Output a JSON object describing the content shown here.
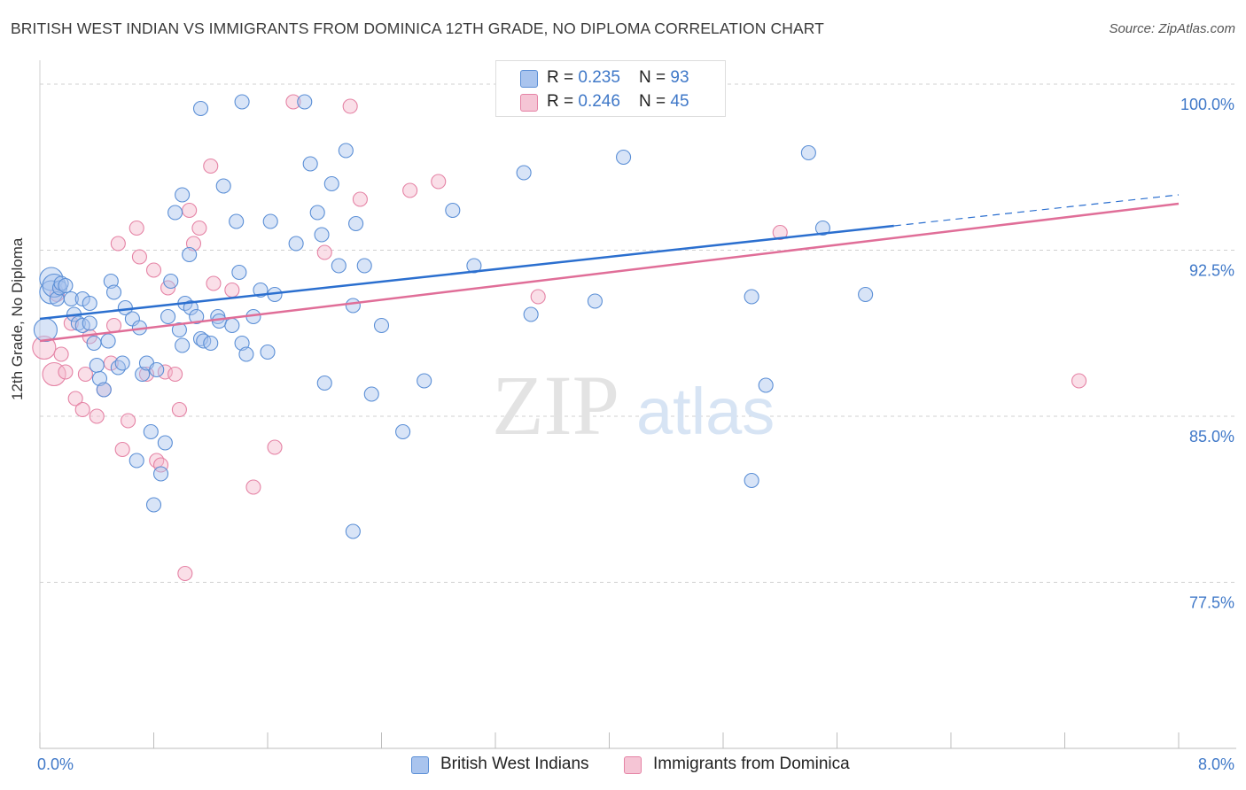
{
  "header": {
    "title": "BRITISH WEST INDIAN VS IMMIGRANTS FROM DOMINICA 12TH GRADE, NO DIPLOMA CORRELATION CHART",
    "source": "Source: ZipAtlas.com"
  },
  "watermark": {
    "zip": "ZIP",
    "atlas": "atlas"
  },
  "legend": {
    "series1": {
      "r_label": "R = ",
      "r_value": "0.235",
      "n_label": "N = ",
      "n_value": "93"
    },
    "series2": {
      "r_label": "R = ",
      "r_value": "0.246",
      "n_label": "N = ",
      "n_value": "45"
    }
  },
  "chart_data": {
    "type": "scatter",
    "xlabel": "",
    "ylabel": "12th Grade, No Diploma",
    "xlim": [
      0.0,
      8.0
    ],
    "ylim": [
      70.0,
      100.8
    ],
    "x_tick_labels": [
      "0.0%",
      "8.0%"
    ],
    "y_ticks": [
      77.5,
      85.0,
      92.5,
      100.0
    ],
    "y_tick_labels": [
      "77.5%",
      "85.0%",
      "92.5%",
      "100.0%"
    ],
    "grid": "horizontal-dashed",
    "legend_placement": "top-center",
    "colors": {
      "series1_fill": "#a9c4ee",
      "series1_stroke": "#5b8fd6",
      "series1_line": "#2b6fcf",
      "series2_fill": "#f5b8cc",
      "series2_stroke": "#e583a5",
      "series2_line": "#e06e98"
    },
    "series": [
      {
        "name": "British West Indians",
        "trend": {
          "x0": 0.0,
          "y0": 89.4,
          "x1": 6.0,
          "y1": 93.6,
          "dash_to_x": 8.0,
          "dash_to_y": 95.0
        },
        "points": [
          [
            0.04,
            88.9
          ],
          [
            0.08,
            91.2
          ],
          [
            0.08,
            90.6
          ],
          [
            0.1,
            90.9
          ],
          [
            0.12,
            90.3
          ],
          [
            0.14,
            90.8
          ],
          [
            0.15,
            91.0
          ],
          [
            0.22,
            90.3
          ],
          [
            0.24,
            89.6
          ],
          [
            0.27,
            89.2
          ],
          [
            0.3,
            90.3
          ],
          [
            0.3,
            89.1
          ],
          [
            0.35,
            90.1
          ],
          [
            0.35,
            89.2
          ],
          [
            0.38,
            88.3
          ],
          [
            0.4,
            87.3
          ],
          [
            0.42,
            86.7
          ],
          [
            0.45,
            86.2
          ],
          [
            0.48,
            88.4
          ],
          [
            0.5,
            91.1
          ],
          [
            0.52,
            90.6
          ],
          [
            0.55,
            87.2
          ],
          [
            0.58,
            87.4
          ],
          [
            0.6,
            89.9
          ],
          [
            0.65,
            89.4
          ],
          [
            0.68,
            83.0
          ],
          [
            0.7,
            89.0
          ],
          [
            0.72,
            86.9
          ],
          [
            0.75,
            87.4
          ],
          [
            0.78,
            84.3
          ],
          [
            0.8,
            81.0
          ],
          [
            0.82,
            87.1
          ],
          [
            0.85,
            82.4
          ],
          [
            0.88,
            83.8
          ],
          [
            0.9,
            89.5
          ],
          [
            0.92,
            91.1
          ],
          [
            0.95,
            94.2
          ],
          [
            0.98,
            88.9
          ],
          [
            1.0,
            88.2
          ],
          [
            1.0,
            95.0
          ],
          [
            1.02,
            90.1
          ],
          [
            1.05,
            92.3
          ],
          [
            1.06,
            89.9
          ],
          [
            1.1,
            89.5
          ],
          [
            1.13,
            88.5
          ],
          [
            1.15,
            88.4
          ],
          [
            1.2,
            88.3
          ],
          [
            1.25,
            89.5
          ],
          [
            1.26,
            89.3
          ],
          [
            1.29,
            95.4
          ],
          [
            1.35,
            89.1
          ],
          [
            1.38,
            93.8
          ],
          [
            1.4,
            91.5
          ],
          [
            1.42,
            88.3
          ],
          [
            1.45,
            87.8
          ],
          [
            1.5,
            89.5
          ],
          [
            1.55,
            90.7
          ],
          [
            1.6,
            87.9
          ],
          [
            1.62,
            93.8
          ],
          [
            1.65,
            90.5
          ],
          [
            1.8,
            92.8
          ],
          [
            1.9,
            96.4
          ],
          [
            1.95,
            94.2
          ],
          [
            1.98,
            93.2
          ],
          [
            2.0,
            86.5
          ],
          [
            2.05,
            95.5
          ],
          [
            2.1,
            91.8
          ],
          [
            2.15,
            97.0
          ],
          [
            2.2,
            90.0
          ],
          [
            2.22,
            93.7
          ],
          [
            2.28,
            91.8
          ],
          [
            2.33,
            86.0
          ],
          [
            2.4,
            89.1
          ],
          [
            2.55,
            84.3
          ],
          [
            2.7,
            86.6
          ],
          [
            2.9,
            94.3
          ],
          [
            3.05,
            91.8
          ],
          [
            3.4,
            96.0
          ],
          [
            3.45,
            89.6
          ],
          [
            3.45,
            99.1
          ],
          [
            3.9,
            90.2
          ],
          [
            4.1,
            96.7
          ],
          [
            5.0,
            90.4
          ],
          [
            5.1,
            86.4
          ],
          [
            5.0,
            82.1
          ],
          [
            5.4,
            96.9
          ],
          [
            5.5,
            93.5
          ],
          [
            5.8,
            90.5
          ],
          [
            2.2,
            79.8
          ],
          [
            1.42,
            99.2
          ],
          [
            1.13,
            98.9
          ],
          [
            1.86,
            99.2
          ],
          [
            0.18,
            90.9
          ]
        ]
      },
      {
        "name": "Immigrants from Dominica",
        "trend": {
          "x0": 0.0,
          "y0": 88.4,
          "x1": 8.0,
          "y1": 94.6
        },
        "points": [
          [
            0.03,
            88.1
          ],
          [
            0.1,
            86.9
          ],
          [
            0.12,
            90.5
          ],
          [
            0.15,
            87.8
          ],
          [
            0.18,
            87.0
          ],
          [
            0.22,
            89.2
          ],
          [
            0.25,
            85.8
          ],
          [
            0.3,
            85.3
          ],
          [
            0.32,
            86.9
          ],
          [
            0.35,
            88.6
          ],
          [
            0.4,
            85.0
          ],
          [
            0.45,
            86.2
          ],
          [
            0.5,
            87.4
          ],
          [
            0.52,
            89.1
          ],
          [
            0.55,
            92.8
          ],
          [
            0.58,
            83.5
          ],
          [
            0.62,
            84.8
          ],
          [
            0.68,
            93.5
          ],
          [
            0.7,
            92.2
          ],
          [
            0.75,
            86.9
          ],
          [
            0.8,
            91.6
          ],
          [
            0.82,
            83.0
          ],
          [
            0.85,
            82.8
          ],
          [
            0.88,
            87.0
          ],
          [
            0.9,
            90.8
          ],
          [
            0.95,
            86.9
          ],
          [
            0.98,
            85.3
          ],
          [
            1.02,
            77.9
          ],
          [
            1.05,
            94.3
          ],
          [
            1.08,
            92.8
          ],
          [
            1.12,
            93.5
          ],
          [
            1.2,
            96.3
          ],
          [
            1.22,
            91.0
          ],
          [
            1.35,
            90.7
          ],
          [
            1.5,
            81.8
          ],
          [
            1.65,
            83.6
          ],
          [
            1.78,
            99.2
          ],
          [
            2.0,
            92.4
          ],
          [
            2.18,
            99.0
          ],
          [
            2.25,
            94.8
          ],
          [
            2.6,
            95.2
          ],
          [
            2.8,
            95.6
          ],
          [
            3.5,
            90.4
          ],
          [
            5.2,
            93.3
          ],
          [
            7.3,
            86.6
          ]
        ]
      }
    ]
  },
  "bottom_legend": {
    "series1_label": "British West Indians",
    "series2_label": "Immigrants from Dominica"
  }
}
